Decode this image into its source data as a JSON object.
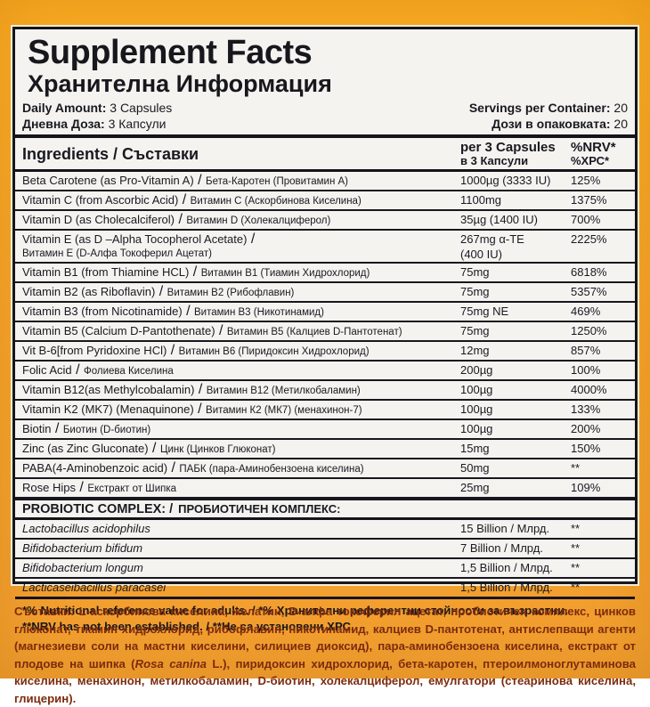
{
  "colors": {
    "frame_orange": "#f7a42b",
    "panel_bg": "#f4f3f0",
    "ink": "#17171d",
    "bottom_text": "#7c2b0f"
  },
  "header": {
    "title_en": "Supplement Facts",
    "title_bg": "Хранителна Информация",
    "daily_amount": {
      "label_en": "Daily Amount:",
      "value_en": "3 Capsules",
      "label_bg": "Дневна Доза:",
      "value_bg": "3 Капсули"
    },
    "servings": {
      "label_en": "Servings per Container:",
      "value_en": "20",
      "label_bg": "Дози в опаковката:",
      "value_bg": "20"
    }
  },
  "table": {
    "col_ingredients": "Ingredients / Съставки",
    "col_amount_en": "per 3 Capsules",
    "col_amount_bg": "в 3 Капсули",
    "col_nrv_en": "%NRV*",
    "col_nrv_bg": "%ХРС*",
    "rows": [
      {
        "name_en": "Beta Carotene (as Pro-Vitamin A)",
        "name_bg": "Бета-Каротен (Провитамин А)",
        "amount": "1000µg (3333 IU)",
        "nrv": "125%"
      },
      {
        "name_en": "Vitamin C (from Ascorbic Acid)",
        "name_bg": "Витамин С (Аскорбинова Киселина)",
        "amount": "1100mg",
        "nrv": "1375%"
      },
      {
        "name_en": "Vitamin D (as Cholecalciferol)",
        "name_bg": "Витамин D (Холекалциферол)",
        "amount": "35µg (1400 IU)",
        "nrv": "700%"
      },
      {
        "name_en": "Vitamin E (as D –Alpha Tocopherol Acetate)",
        "name_bg": "Витамин Е (D-Алфа Токоферил Ацетат)",
        "amount": "267mg α-TE",
        "amount2": "(400 IU)",
        "nrv": "2225%",
        "wrap": true
      },
      {
        "name_en": "Vitamin B1 (from Thiamine HCL)",
        "name_bg": "Витамин В1 (Тиамин Хидрохлорид)",
        "amount": "75mg",
        "nrv": "6818%"
      },
      {
        "name_en": "Vitamin B2 (as Riboflavin)",
        "name_bg": "Витамин В2 (Рибофлавин)",
        "amount": "75mg",
        "nrv": "5357%"
      },
      {
        "name_en": "Vitamin B3 (from Nicotinamide)",
        "name_bg": "Витамин В3 (Никотинамид)",
        "amount": "75mg NE",
        "nrv": "469%"
      },
      {
        "name_en": "Vitamin B5 (Calcium D-Pantothenate)",
        "name_bg": "Витамин В5 (Калциев D-Пантотенат)",
        "amount": "75mg",
        "nrv": "1250%"
      },
      {
        "name_en": "Vit B-6[from Pyridoxine HCl)",
        "name_bg": "Витамин В6 (Пиридоксин Хидрохлорид)",
        "amount": "12mg",
        "nrv": "857%"
      },
      {
        "name_en": "Folic Acid",
        "name_bg": "Фолиева Киселина",
        "amount": "200µg",
        "nrv": "100%"
      },
      {
        "name_en": "Vitamin B12(as Methylcobalamin)",
        "name_bg": "Витамин В12 (Метилкобаламин)",
        "amount": "100µg",
        "nrv": "4000%"
      },
      {
        "name_en": "Vitamin K2 (MK7) (Menaquinone)",
        "name_bg": "Витамин К2 (МК7) (менахинон-7)",
        "amount": "100µg",
        "nrv": "133%"
      },
      {
        "name_en": "Biotin",
        "name_bg": "Биотин (D-биотин)",
        "amount": "100µg",
        "nrv": "200%"
      },
      {
        "name_en": "Zinc (as Zinc Gluconate)",
        "name_bg": "Цинк (Цинков Глюконат)",
        "amount": "15mg",
        "nrv": "150%"
      },
      {
        "name_en": "PABA(4-Aminobenzoic acid)",
        "name_bg": "ПАБК (пара-Аминобензоена киселина)",
        "amount": "50mg",
        "nrv": "**"
      },
      {
        "name_en": "Rose Hips",
        "name_bg": "Екстракт от Шипка",
        "amount": "25mg",
        "nrv": "109%"
      }
    ],
    "probiotic_header_en": "PROBIOTIC COMPLEX: /",
    "probiotic_header_bg": "ПРОБИОТИЧЕН КОМПЛЕКС:",
    "probiotic_rows": [
      {
        "name": "Lactobacillus acidophilus",
        "amount": "15 Billion / Млрд.",
        "nrv": "**"
      },
      {
        "name": "Bifidobacterium bifidum",
        "amount": "7 Billion / Млрд.",
        "nrv": "**"
      },
      {
        "name": "Bifidobacterium longum",
        "amount": "1,5 Billion / Млрд.",
        "nrv": "**"
      },
      {
        "name": "Lacticaseibacillus paracasei",
        "amount": "1,5 Billion / Млрд.",
        "nrv": "**"
      }
    ]
  },
  "footnotes": [
    "*% Nutritional reference value for adults. / *% Хранителни референтни стойности за възрастни.",
    "**NRV has not been established. / **Не са установени ХРС."
  ],
  "ingredients": {
    "label": "Съставки:",
    "text_before": " L-аскорбинова киселина, желатин, D-алфа токоферил ацетат, пробиотичен комплекс, цинков глюконат, тиамин хидрохлорид, рибофлавин, никотинамид, калциев D-пантотенат, антислепващи агенти (магнезиеви соли на мастни киселини, силициев диоксид), пара-аминобензоена киселина, екстракт от плодове на шипка (",
    "italic": "Rosa canina",
    "text_after": " L.), пиридоксин хидрохлорид, бета-каротен, птероилмоноглутаминова киселина, менахинон, метилкобаламин, D-биотин, холекалциферол, емулгатори (стеаринова киселина, глицерин)."
  }
}
